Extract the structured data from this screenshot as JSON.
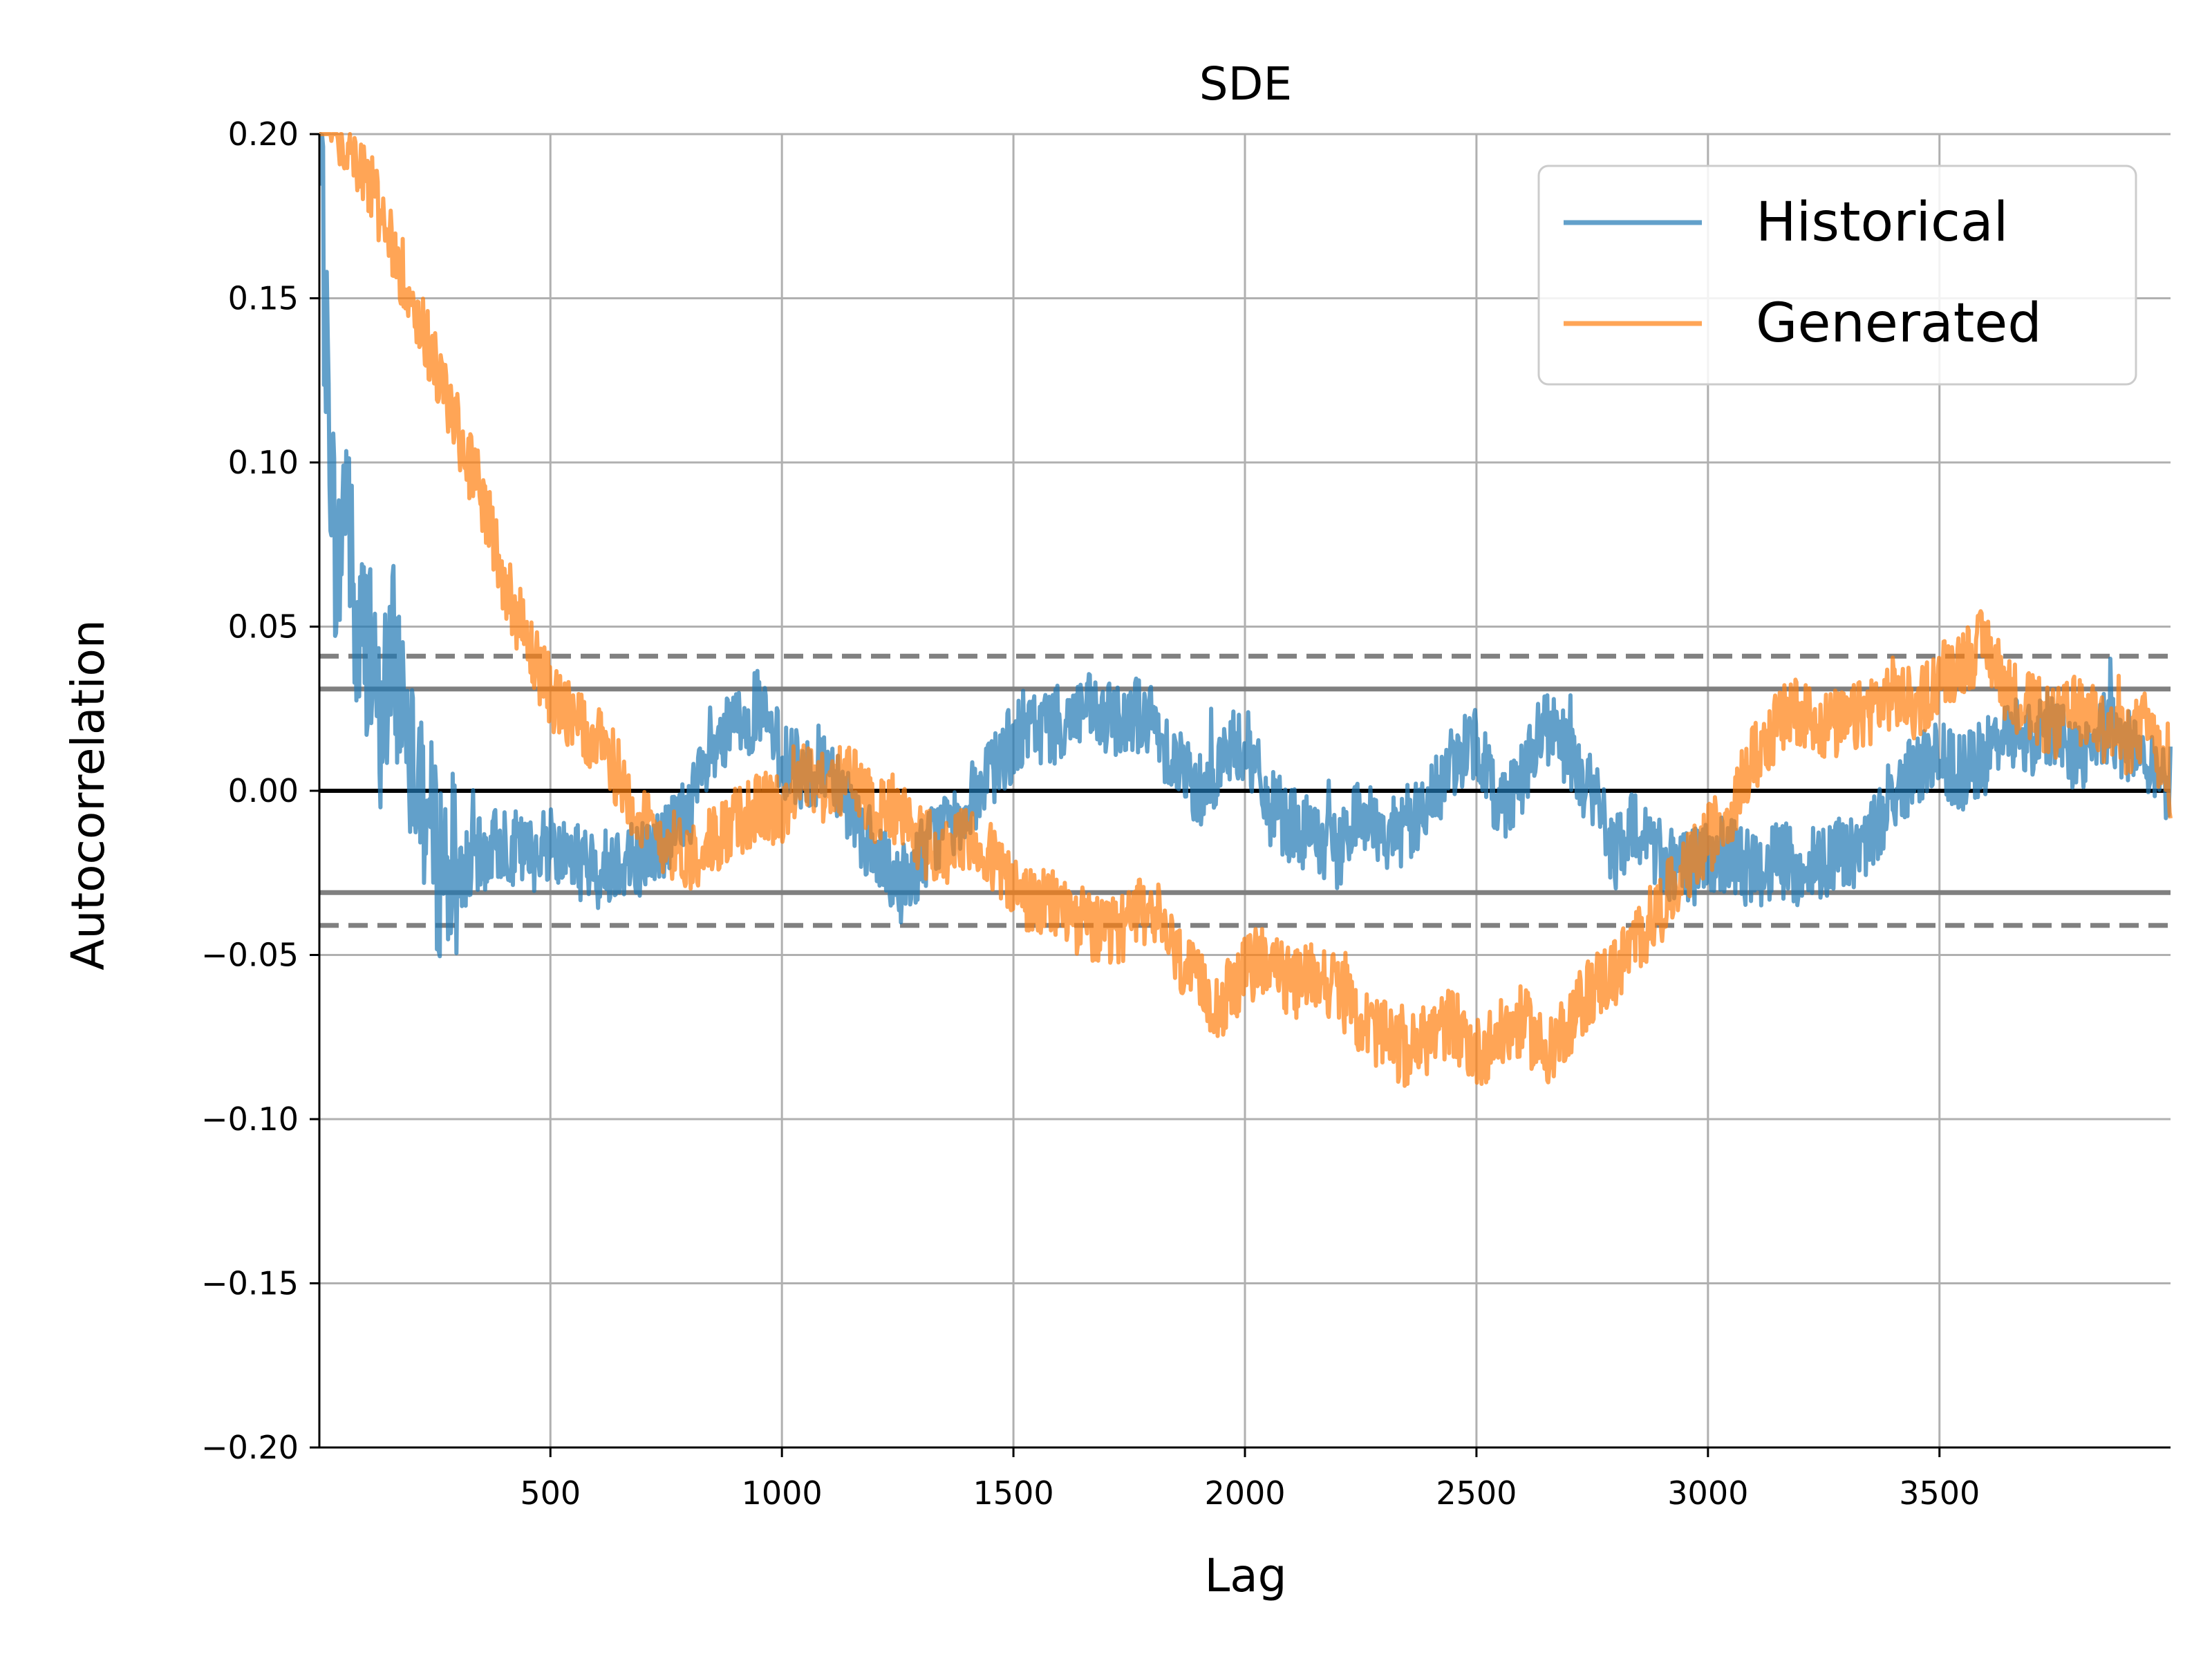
{
  "chart_data": {
    "type": "line",
    "title": "SDE",
    "xlabel": "Lag",
    "ylabel": "Autocorrelation",
    "xlim": [
      1,
      3999
    ],
    "ylim": [
      -0.2,
      0.2
    ],
    "x_ticks": [
      500,
      1000,
      1500,
      2000,
      2500,
      3000,
      3500
    ],
    "x_tick_labels": [
      "500",
      "1000",
      "1500",
      "2000",
      "2500",
      "3000",
      "3500"
    ],
    "y_ticks": [
      -0.2,
      -0.15,
      -0.1,
      -0.05,
      0,
      0.05,
      0.1,
      0.15,
      0.2
    ],
    "y_tick_labels": [
      "−0.20",
      "−0.15",
      "−0.10",
      "−0.05",
      "0.00",
      "0.05",
      "0.10",
      "0.15",
      "0.20"
    ],
    "grid": true,
    "legend_position": "top-right",
    "reference_lines": [
      {
        "y": 0.0,
        "style": "solid",
        "color": "#000000"
      },
      {
        "y": 0.031,
        "style": "solid",
        "color": "#808080"
      },
      {
        "y": -0.031,
        "style": "solid",
        "color": "#808080"
      },
      {
        "y": 0.041,
        "style": "dashed",
        "color": "#808080"
      },
      {
        "y": -0.041,
        "style": "dashed",
        "color": "#808080"
      }
    ],
    "series": [
      {
        "name": "Historical",
        "color": "#1f77b4",
        "x": [
          1,
          20,
          40,
          60,
          80,
          100,
          130,
          160,
          200,
          250,
          300,
          350,
          400,
          450,
          500,
          550,
          600,
          650,
          700,
          750,
          800,
          850,
          900,
          950,
          1000,
          1050,
          1100,
          1150,
          1200,
          1250,
          1300,
          1350,
          1400,
          1450,
          1500,
          1550,
          1600,
          1650,
          1700,
          1750,
          1800,
          1850,
          1900,
          1950,
          2000,
          2050,
          2100,
          2150,
          2200,
          2250,
          2300,
          2350,
          2400,
          2450,
          2500,
          2550,
          2600,
          2650,
          2700,
          2750,
          2800,
          2850,
          2900,
          2950,
          3000,
          3050,
          3100,
          3150,
          3200,
          3250,
          3300,
          3350,
          3400,
          3450,
          3500,
          3550,
          3600,
          3650,
          3700,
          3750,
          3800,
          3850,
          3900,
          3950,
          3999
        ],
        "y": [
          0.2,
          0.12,
          0.06,
          0.1,
          0.04,
          0.05,
          0.02,
          0.04,
          0.02,
          -0.02,
          -0.025,
          -0.02,
          -0.015,
          -0.02,
          -0.015,
          -0.02,
          -0.025,
          -0.02,
          -0.02,
          -0.015,
          -0.005,
          0.01,
          0.02,
          0.025,
          0.01,
          0.005,
          0.01,
          -0.005,
          -0.02,
          -0.03,
          -0.02,
          -0.01,
          -0.005,
          0.005,
          0.015,
          0.02,
          0.02,
          0.025,
          0.02,
          0.025,
          0.02,
          0.01,
          0.0,
          0.01,
          0.015,
          -0.005,
          -0.01,
          -0.015,
          -0.02,
          -0.005,
          -0.015,
          -0.01,
          -0.005,
          0.01,
          0.015,
          -0.005,
          0.005,
          0.02,
          0.01,
          0.0,
          -0.02,
          -0.01,
          -0.02,
          -0.025,
          -0.02,
          -0.02,
          -0.025,
          -0.02,
          -0.025,
          -0.02,
          -0.02,
          -0.015,
          0.0,
          0.005,
          0.01,
          0.005,
          0.01,
          0.02,
          0.015,
          0.02,
          0.01,
          0.02,
          0.015,
          0.01,
          0.002
        ]
      },
      {
        "name": "Generated",
        "color": "#ff7f0e",
        "x": [
          1,
          20,
          50,
          100,
          150,
          200,
          250,
          300,
          350,
          400,
          450,
          500,
          550,
          600,
          650,
          700,
          750,
          800,
          850,
          900,
          950,
          1000,
          1050,
          1100,
          1150,
          1200,
          1250,
          1300,
          1350,
          1400,
          1450,
          1500,
          1550,
          1600,
          1650,
          1700,
          1750,
          1800,
          1850,
          1900,
          1950,
          2000,
          2050,
          2100,
          2150,
          2200,
          2250,
          2300,
          2350,
          2400,
          2450,
          2500,
          2550,
          2600,
          2650,
          2700,
          2750,
          2800,
          2850,
          2900,
          2950,
          3000,
          3050,
          3100,
          3150,
          3200,
          3250,
          3300,
          3350,
          3400,
          3450,
          3500,
          3550,
          3600,
          3650,
          3700,
          3750,
          3800,
          3850,
          3900,
          3950,
          3999
        ],
        "y": [
          0.2,
          0.21,
          0.2,
          0.19,
          0.17,
          0.15,
          0.13,
          0.11,
          0.09,
          0.065,
          0.045,
          0.03,
          0.02,
          0.015,
          0.005,
          -0.01,
          -0.015,
          -0.02,
          -0.015,
          -0.01,
          -0.005,
          -0.005,
          0.005,
          0.0,
          0.005,
          -0.005,
          -0.005,
          -0.015,
          -0.02,
          -0.015,
          -0.02,
          -0.03,
          -0.035,
          -0.035,
          -0.04,
          -0.045,
          -0.04,
          -0.035,
          -0.05,
          -0.06,
          -0.065,
          -0.055,
          -0.05,
          -0.06,
          -0.055,
          -0.06,
          -0.07,
          -0.075,
          -0.08,
          -0.075,
          -0.07,
          -0.08,
          -0.075,
          -0.07,
          -0.08,
          -0.07,
          -0.06,
          -0.055,
          -0.045,
          -0.035,
          -0.025,
          -0.015,
          -0.005,
          0.01,
          0.02,
          0.025,
          0.02,
          0.02,
          0.025,
          0.03,
          0.025,
          0.035,
          0.04,
          0.045,
          0.03,
          0.025,
          0.02,
          0.025,
          0.02,
          0.015,
          0.02,
          0.0
        ]
      }
    ]
  }
}
